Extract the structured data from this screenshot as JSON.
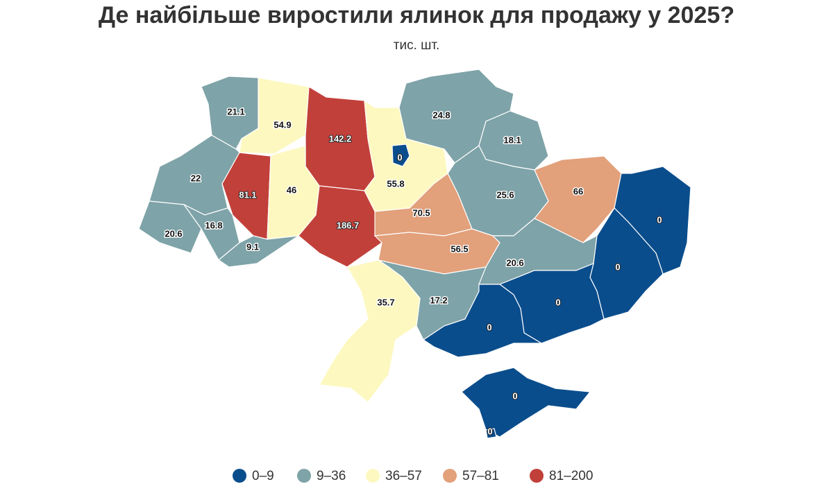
{
  "chart_data": {
    "type": "choropleth",
    "title": "Де найбільше виростили ялинок для продажу у 2025?",
    "subtitle": "тис. шт.",
    "regions": [
      {
        "value": 21.1,
        "color": "#7ea3a8"
      },
      {
        "value": 54.9,
        "color": "#fdf8c0"
      },
      {
        "value": 142.2,
        "color": "#c2403a"
      },
      {
        "value": 55.8,
        "color": "#fdf8c0"
      },
      {
        "value": 0,
        "color": "#0a4d8c"
      },
      {
        "value": 24.8,
        "color": "#7ea3a8"
      },
      {
        "value": 18.1,
        "color": "#7ea3a8"
      },
      {
        "value": 22,
        "color": "#7ea3a8"
      },
      {
        "value": 81.1,
        "color": "#c2403a"
      },
      {
        "value": 46,
        "color": "#fdf8c0"
      },
      {
        "value": 186.7,
        "color": "#c2403a"
      },
      {
        "value": 70.5,
        "color": "#e2a07b"
      },
      {
        "value": 25.6,
        "color": "#7ea3a8"
      },
      {
        "value": 66,
        "color": "#e2a07b"
      },
      {
        "value": 20.6,
        "color": "#7ea3a8"
      },
      {
        "value": 16.8,
        "color": "#7ea3a8"
      },
      {
        "value": 9.1,
        "color": "#7ea3a8"
      },
      {
        "value": 56.5,
        "color": "#e2a07b"
      },
      {
        "value": 20.6,
        "color": "#7ea3a8"
      },
      {
        "value": 0,
        "color": "#0a4d8c"
      },
      {
        "value": 0,
        "color": "#0a4d8c"
      },
      {
        "value": 0,
        "color": "#0a4d8c"
      },
      {
        "value": 17.2,
        "color": "#7ea3a8"
      },
      {
        "value": 35.7,
        "color": "#fdf8c0"
      },
      {
        "value": 0,
        "color": "#0a4d8c"
      },
      {
        "value": 0,
        "color": "#0a4d8c"
      },
      {
        "value": 0,
        "color": "#0a4d8c"
      }
    ],
    "legend": [
      {
        "label": "0–9",
        "color": "#0a4d8c"
      },
      {
        "label": "9–36",
        "color": "#7ea3a8"
      },
      {
        "label": "36–57",
        "color": "#fdf8c0"
      },
      {
        "label": "57–81",
        "color": "#e2a07b"
      },
      {
        "label": "81–200",
        "color": "#c2403a"
      }
    ]
  }
}
